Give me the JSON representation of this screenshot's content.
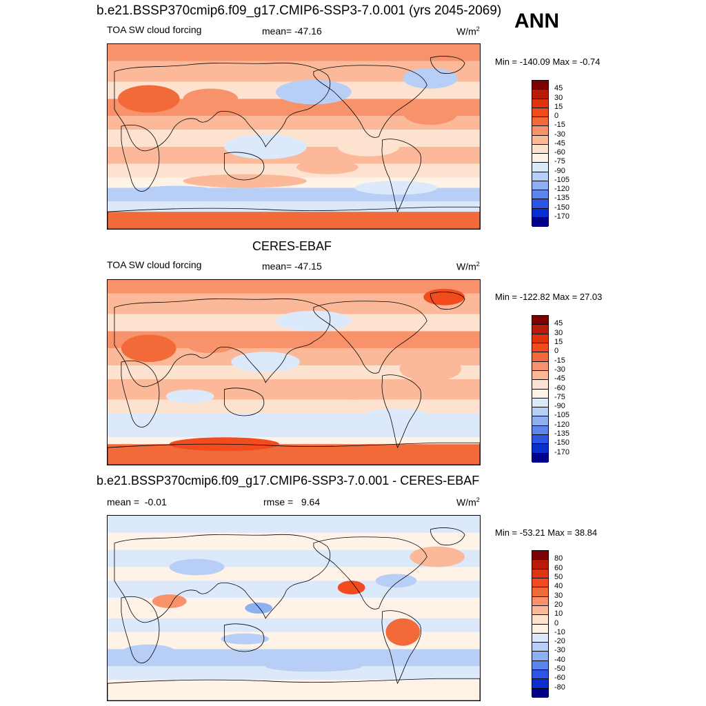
{
  "header": {
    "title": "b.e21.BSSP370cmip6.f09_g17.CMIP6-SSP3-7.0.001 (yrs 2045-2069)",
    "season": "ANN"
  },
  "panels": [
    {
      "title": "",
      "variable": "TOA SW cloud forcing",
      "stat_label": "mean=",
      "stat_value": "-47.16",
      "stat2_label": "",
      "stat2_value": "",
      "units": "W/m",
      "units_sup": "2",
      "minmax": "Min = -140.09 Max =  -0.74",
      "levels": [
        "45",
        "30",
        "15",
        "0",
        "-15",
        "-30",
        "-45",
        "-60",
        "-75",
        "-90",
        "-105",
        "-120",
        "-135",
        "-150",
        "-170"
      ],
      "colors": [
        "#7f0000",
        "#b71c08",
        "#e0330f",
        "#f24b1d",
        "#f26a3a",
        "#f7926a",
        "#fbb99a",
        "#fde3cf",
        "#fff2e6",
        "#dce9fb",
        "#b7cff7",
        "#8db0f2",
        "#5d86ec",
        "#2b55e5",
        "#0b2ed0",
        "#00008b"
      ]
    },
    {
      "title": "CERES-EBAF",
      "variable": "TOA SW cloud forcing",
      "stat_label": "mean=",
      "stat_value": "-47.15",
      "stat2_label": "",
      "stat2_value": "",
      "units": "W/m",
      "units_sup": "2",
      "minmax": "Min = -122.82 Max =  27.03",
      "levels": [
        "45",
        "30",
        "15",
        "0",
        "-15",
        "-30",
        "-45",
        "-60",
        "-75",
        "-90",
        "-105",
        "-120",
        "-135",
        "-150",
        "-170"
      ],
      "colors": [
        "#7f0000",
        "#b71c08",
        "#e0330f",
        "#f24b1d",
        "#f26a3a",
        "#f7926a",
        "#fbb99a",
        "#fde3cf",
        "#fff2e6",
        "#dce9fb",
        "#b7cff7",
        "#8db0f2",
        "#5d86ec",
        "#2b55e5",
        "#0b2ed0",
        "#00008b"
      ]
    },
    {
      "title": "b.e21.BSSP370cmip6.f09_g17.CMIP6-SSP3-7.0.001 - CERES-EBAF",
      "variable": "",
      "stat_label": "mean =",
      "stat_value": "-0.01",
      "stat2_label": "rmse =",
      "stat2_value": "9.64",
      "units": "W/m",
      "units_sup": "2",
      "minmax": "Min = -53.21 Max =  38.84",
      "levels": [
        "80",
        "60",
        "50",
        "40",
        "30",
        "20",
        "10",
        "0",
        "-10",
        "-20",
        "-30",
        "-40",
        "-50",
        "-60",
        "-80"
      ],
      "colors": [
        "#7f0000",
        "#b71c08",
        "#e0330f",
        "#f24b1d",
        "#f26a3a",
        "#f7926a",
        "#fbb99a",
        "#fde3cf",
        "#fff2e6",
        "#dce9fb",
        "#b7cff7",
        "#8db0f2",
        "#5d86ec",
        "#2b55e5",
        "#0b2ed0",
        "#00008b"
      ]
    }
  ]
}
